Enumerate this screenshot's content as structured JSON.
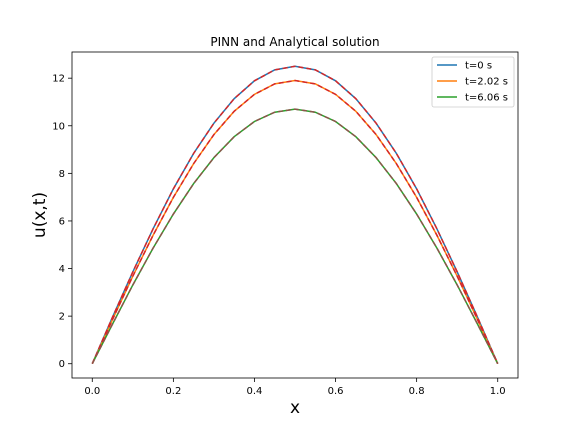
{
  "chart_data": {
    "type": "line",
    "title": "PINN and Analytical solution",
    "xlabel": "x",
    "ylabel": "u(x,t)",
    "xlim": [
      -0.05,
      1.05
    ],
    "ylim": [
      -0.6,
      13.1
    ],
    "xticks": [
      0.0,
      0.2,
      0.4,
      0.6,
      0.8,
      1.0
    ],
    "xtick_labels": [
      "0.0",
      "0.2",
      "0.4",
      "0.6",
      "0.8",
      "1.0"
    ],
    "yticks": [
      0,
      2,
      4,
      6,
      8,
      10,
      12
    ],
    "ytick_labels": [
      "0",
      "2",
      "4",
      "6",
      "8",
      "10",
      "12"
    ],
    "grid": false,
    "legend_position": "top-right",
    "x": [
      0.0,
      0.05,
      0.1,
      0.15,
      0.2,
      0.25,
      0.3,
      0.35,
      0.4,
      0.45,
      0.5,
      0.55,
      0.6,
      0.65,
      0.7,
      0.75,
      0.8,
      0.85,
      0.9,
      0.95,
      1.0
    ],
    "series": [
      {
        "name": "t=0 s",
        "color": "#1f77b4",
        "style": "solid",
        "values": [
          0.0,
          1.96,
          3.86,
          5.67,
          7.35,
          8.84,
          10.11,
          11.14,
          11.89,
          12.35,
          12.5,
          12.35,
          11.89,
          11.14,
          10.11,
          8.84,
          7.35,
          5.67,
          3.86,
          1.96,
          0.0
        ]
      },
      {
        "name": "t=2.02 s",
        "color": "#ff7f0e",
        "style": "solid",
        "values": [
          0.0,
          1.86,
          3.68,
          5.4,
          6.99,
          8.41,
          9.63,
          10.61,
          11.32,
          11.76,
          11.9,
          11.76,
          11.32,
          10.61,
          9.63,
          8.41,
          6.99,
          5.4,
          3.68,
          1.86,
          0.0
        ]
      },
      {
        "name": "t=6.06 s",
        "color": "#2ca02c",
        "style": "solid",
        "values": [
          0.0,
          1.67,
          3.31,
          4.86,
          6.29,
          7.57,
          8.66,
          9.54,
          10.18,
          10.57,
          10.7,
          10.57,
          10.18,
          9.54,
          8.66,
          7.57,
          6.29,
          4.86,
          3.31,
          1.67,
          0.0
        ]
      },
      {
        "color": "#d62728",
        "style": "dashed",
        "values": [
          0.0,
          1.96,
          3.86,
          5.67,
          7.35,
          8.84,
          10.11,
          11.14,
          11.89,
          12.35,
          12.5,
          12.35,
          11.89,
          11.14,
          10.11,
          8.84,
          7.35,
          5.67,
          3.86,
          1.96,
          0.0
        ]
      },
      {
        "color": "#d62728",
        "style": "dashed",
        "values": [
          0.0,
          1.86,
          3.68,
          5.4,
          6.99,
          8.41,
          9.63,
          10.61,
          11.32,
          11.76,
          11.9,
          11.76,
          11.32,
          10.61,
          9.63,
          8.41,
          6.99,
          5.4,
          3.68,
          1.86,
          0.0
        ]
      },
      {
        "color": "#8c564b",
        "style": "dashed",
        "values": [
          0.0,
          1.67,
          3.31,
          4.86,
          6.29,
          7.57,
          8.66,
          9.54,
          10.18,
          10.57,
          10.7,
          10.57,
          10.18,
          9.54,
          8.66,
          7.57,
          6.29,
          4.86,
          3.31,
          1.67,
          0.0
        ]
      }
    ]
  }
}
